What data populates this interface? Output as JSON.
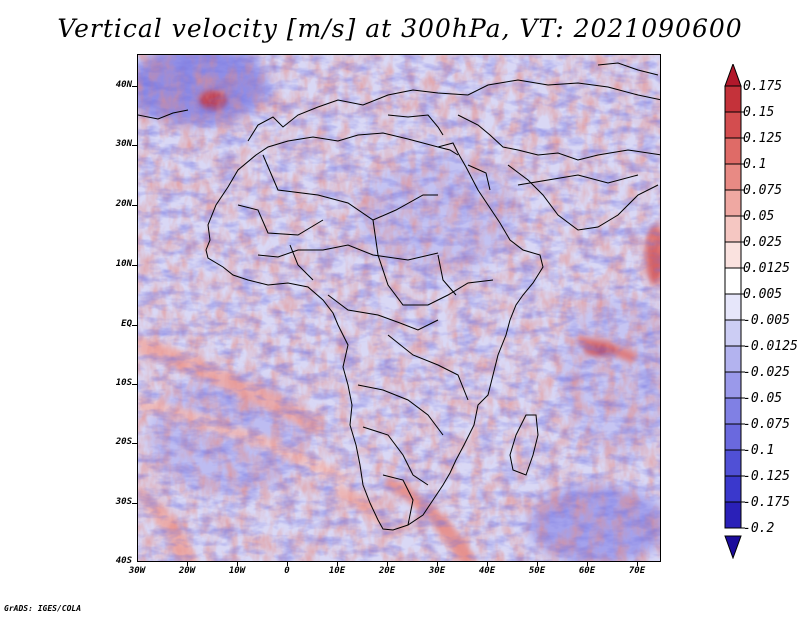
{
  "title": "Vertical velocity [m/s] at 300hPa, VT: 2021090600",
  "credit": "GrADS: IGES/COLA",
  "map": {
    "lon_range": [
      -30,
      75
    ],
    "lat_range": [
      -40,
      45
    ],
    "y_axis_labels": [
      "40N",
      "30N",
      "20N",
      "10N",
      "EQ",
      "10S",
      "20S",
      "30S",
      "40S"
    ],
    "y_axis_values": [
      40,
      30,
      20,
      10,
      0,
      -10,
      -20,
      -30,
      -40
    ],
    "x_axis_labels": [
      "30W",
      "20W",
      "10W",
      "0",
      "10E",
      "20E",
      "30E",
      "40E",
      "50E",
      "60E",
      "70E"
    ],
    "x_axis_values": [
      -30,
      -20,
      -10,
      0,
      10,
      20,
      30,
      40,
      50,
      60,
      70
    ]
  },
  "colorbar": {
    "labels": [
      "0.175",
      "0.15",
      "0.125",
      "0.1",
      "0.075",
      "0.05",
      "0.025",
      "0.0125",
      "0.005",
      "-0.005",
      "-0.0125",
      "-0.025",
      "-0.05",
      "-0.075",
      "-0.1",
      "-0.125",
      "-0.175",
      "-0.2"
    ],
    "colors": [
      "#b2182b",
      "#c4323a",
      "#d34d4f",
      "#df6b67",
      "#e88a84",
      "#efa8a2",
      "#f5c7c2",
      "#fae2df",
      "#ffffff",
      "#e6e6fa",
      "#cccdf4",
      "#b3b3ef",
      "#9a99ea",
      "#8080e4",
      "#6a69de",
      "#5050d6",
      "#3a38cc",
      "#2a20b8",
      "#1c0c9c"
    ]
  }
}
